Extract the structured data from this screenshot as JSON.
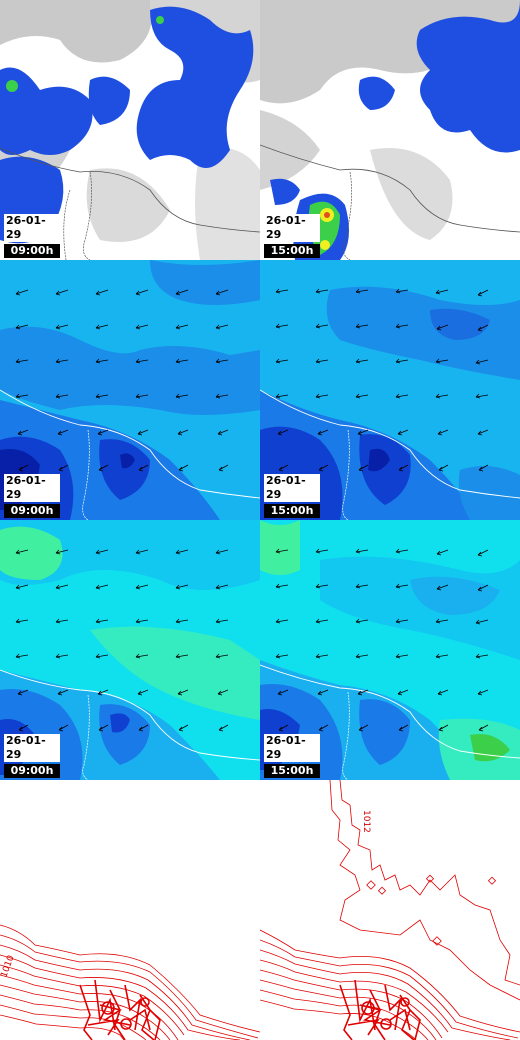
{
  "panels": [
    {
      "date": "26-01-29",
      "time": "09:00h"
    },
    {
      "date": "26-01-29",
      "time": "15:00h"
    },
    {
      "date": "26-01-29",
      "time": "09:00h"
    },
    {
      "date": "26-01-29",
      "time": "15:00h"
    },
    {
      "date": "26-01-29",
      "time": "09:00h"
    },
    {
      "date": "26-01-29",
      "time": "15:00h"
    }
  ],
  "contour_labels": [
    "1010",
    "1012"
  ],
  "colors": {
    "precip_gray": "#c8c8c8",
    "precip_blue": "#1f4fe0",
    "precip_green": "#3cd04a",
    "precip_yellow": "#f0f020",
    "wind_light": "#18b4f0",
    "wind_mid": "#1a7ae8",
    "wind_dark": "#1030c0",
    "gust_cyan": "#10e8ee",
    "gust_green": "#40f0a0",
    "isobar_red": "#e00000"
  }
}
